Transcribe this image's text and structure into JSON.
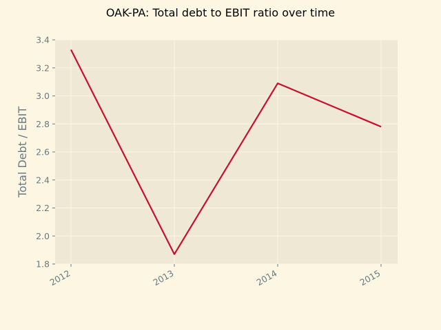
{
  "chart_data": {
    "type": "line",
    "title": "OAK-PA: Total debt to EBIT ratio over time",
    "xlabel": "",
    "ylabel": "Total Debt / EBIT",
    "categories": [
      "2012",
      "2013",
      "2014",
      "2015"
    ],
    "series": [
      {
        "values": [
          3.33,
          1.87,
          3.09,
          2.78
        ],
        "color": "#c8102e"
      }
    ],
    "ylim": [
      1.8,
      3.4
    ],
    "yticks": [
      "1.8",
      "2.0",
      "2.2",
      "2.4",
      "2.6",
      "2.8",
      "3.0",
      "3.2",
      "3.4"
    ],
    "grid": true,
    "legend": "none"
  },
  "colors": {
    "page_background": "#fdf6e3",
    "plot_background": "#eee8d5",
    "grid": "#fdf6e3",
    "text": "#657b83"
  }
}
